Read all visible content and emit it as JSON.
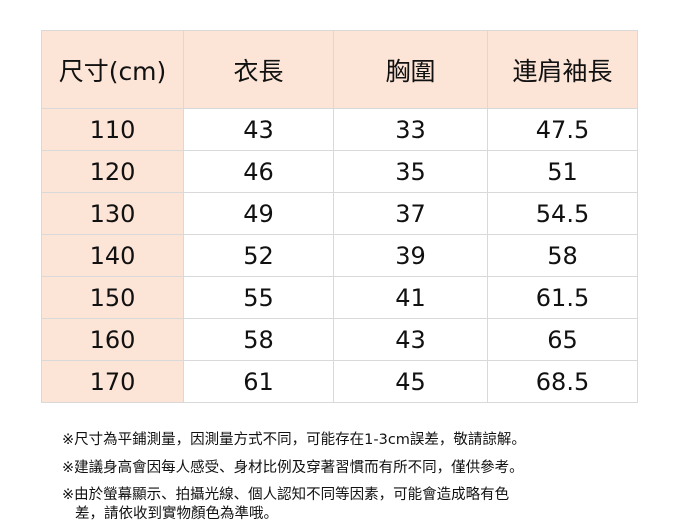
{
  "table": {
    "headers": [
      "尺寸(cm)",
      "衣長",
      "胸圍",
      "連肩袖長"
    ],
    "rows": [
      [
        "110",
        "43",
        "33",
        "47.5"
      ],
      [
        "120",
        "46",
        "35",
        "51"
      ],
      [
        "130",
        "49",
        "37",
        "54.5"
      ],
      [
        "140",
        "52",
        "39",
        "58"
      ],
      [
        "150",
        "55",
        "41",
        "61.5"
      ],
      [
        "160",
        "58",
        "43",
        "65"
      ],
      [
        "170",
        "61",
        "45",
        "68.5"
      ]
    ]
  },
  "notes": [
    "※尺寸為平鋪測量，因測量方式不同，可能存在1-3cm誤差，敬請諒解。",
    "※建議身高會因每人感受、身材比例及穿著習慣而有所不同，僅供參考。",
    "※由於螢幕顯示、拍攝光線、個人認知不同等因素，可能會造成略有色",
    "差，請依收到實物顏色為準哦。"
  ],
  "colors": {
    "header_bg": "#fce4d6",
    "border": "#d9d9d9"
  }
}
